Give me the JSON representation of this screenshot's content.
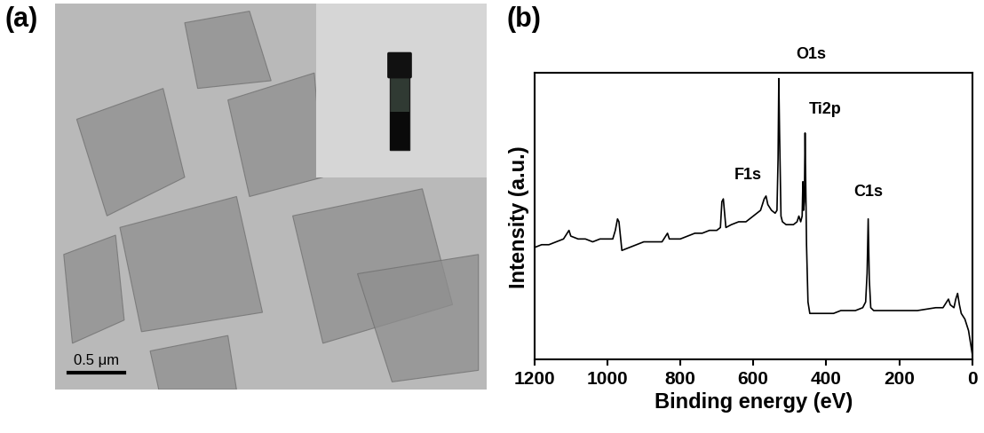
{
  "chart_data": [
    {
      "type": "image",
      "title": "(a)",
      "annotations": [
        {
          "text": "0.5 μm"
        }
      ]
    },
    {
      "type": "line",
      "title": "(b)",
      "x_label": "Binding energy (eV)",
      "y_label": "Intensity (a.u.)",
      "x": [
        1200,
        1180,
        1160,
        1140,
        1120,
        1110,
        1105,
        1100,
        1080,
        1060,
        1040,
        1020,
        1000,
        985,
        978,
        972,
        968,
        960,
        940,
        920,
        900,
        880,
        850,
        835,
        830,
        820,
        800,
        780,
        760,
        740,
        720,
        700,
        690,
        686,
        682,
        675,
        660,
        640,
        620,
        600,
        590,
        580,
        575,
        570,
        565,
        560,
        550,
        540,
        535,
        532,
        530,
        528,
        524,
        520,
        510,
        500,
        490,
        480,
        475,
        470,
        466,
        464,
        462,
        460,
        458,
        456,
        454,
        450,
        445,
        440,
        420,
        400,
        380,
        360,
        340,
        320,
        300,
        292,
        288,
        285,
        282,
        278,
        270,
        250,
        200,
        150,
        100,
        80,
        70,
        65,
        60,
        50,
        45,
        40,
        35,
        30,
        20,
        10,
        0
      ],
      "values": [
        39,
        40,
        40,
        41,
        42,
        44,
        45,
        43,
        42,
        42,
        41,
        42,
        42,
        42,
        45,
        49,
        48,
        38,
        39,
        40,
        41,
        41,
        41,
        44,
        42,
        42,
        42,
        43,
        44,
        44,
        45,
        45,
        46,
        55,
        56,
        46,
        47,
        48,
        48,
        50,
        51,
        52,
        54,
        56,
        57,
        54,
        52,
        51,
        52,
        70,
        98,
        80,
        50,
        48,
        47,
        47,
        47,
        48,
        50,
        48,
        50,
        62,
        52,
        55,
        79,
        60,
        40,
        20,
        16,
        16,
        16,
        16,
        16,
        17,
        17,
        17,
        18,
        20,
        30,
        49,
        28,
        18,
        17,
        17,
        17,
        17,
        18,
        18,
        20,
        21,
        19,
        18,
        21,
        23,
        19,
        16,
        14,
        10,
        2
      ],
      "color": "#000000",
      "xlim": [
        1200,
        0
      ],
      "ylim": [
        0,
        100
      ],
      "xticks": [
        1200,
        1000,
        800,
        600,
        400,
        200,
        0
      ],
      "tick_labels": "x",
      "annotations": [
        {
          "text": "F1s",
          "x": 614,
          "y": 62
        },
        {
          "text": "O1s",
          "x": 441,
          "y": 104
        },
        {
          "text": "Ti2p",
          "x": 402,
          "y": 85
        },
        {
          "text": "C1s",
          "x": 285,
          "y": 56
        }
      ]
    }
  ]
}
